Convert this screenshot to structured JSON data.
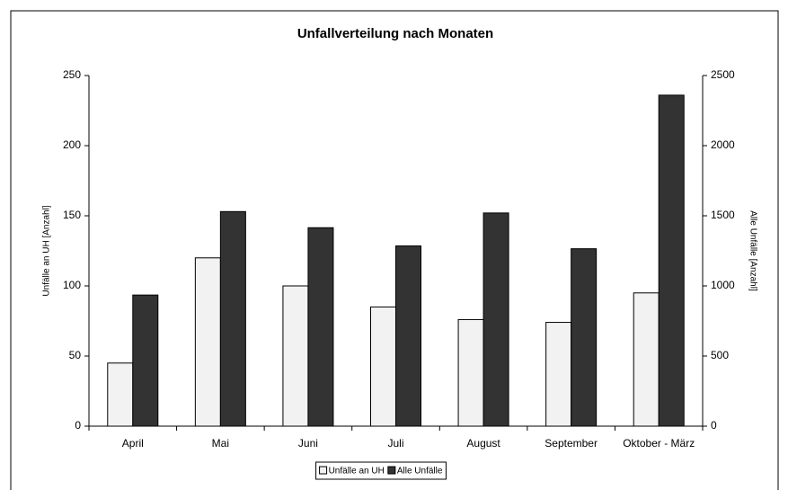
{
  "chart_data": {
    "type": "bar",
    "title": "Unfallverteilung nach Monaten",
    "categories": [
      "April",
      "Mai",
      "Juni",
      "Juli",
      "August",
      "September",
      "Oktober - März"
    ],
    "y_label": "Unfälle an UH [Anzahl]",
    "y2_label": "Alle Unfälle [Anzahl]",
    "series": [
      {
        "name": "Unfälle an UH",
        "color": "#f2f2f2",
        "values": [
          45,
          120,
          100,
          85,
          76,
          74,
          95
        ]
      },
      {
        "name": "Alle Unfälle",
        "color": "#333333",
        "axis": "y2",
        "values": [
          935,
          1530,
          1415,
          1285,
          1520,
          1265,
          2360
        ]
      }
    ],
    "ylim": [
      0,
      250
    ],
    "yticks": [
      0,
      50,
      100,
      150,
      200,
      250
    ],
    "y2lim": [
      0,
      2500
    ],
    "y2ticks": [
      0,
      500,
      1000,
      1500,
      2000,
      2500
    ],
    "grid": false,
    "legend": "bottom"
  }
}
